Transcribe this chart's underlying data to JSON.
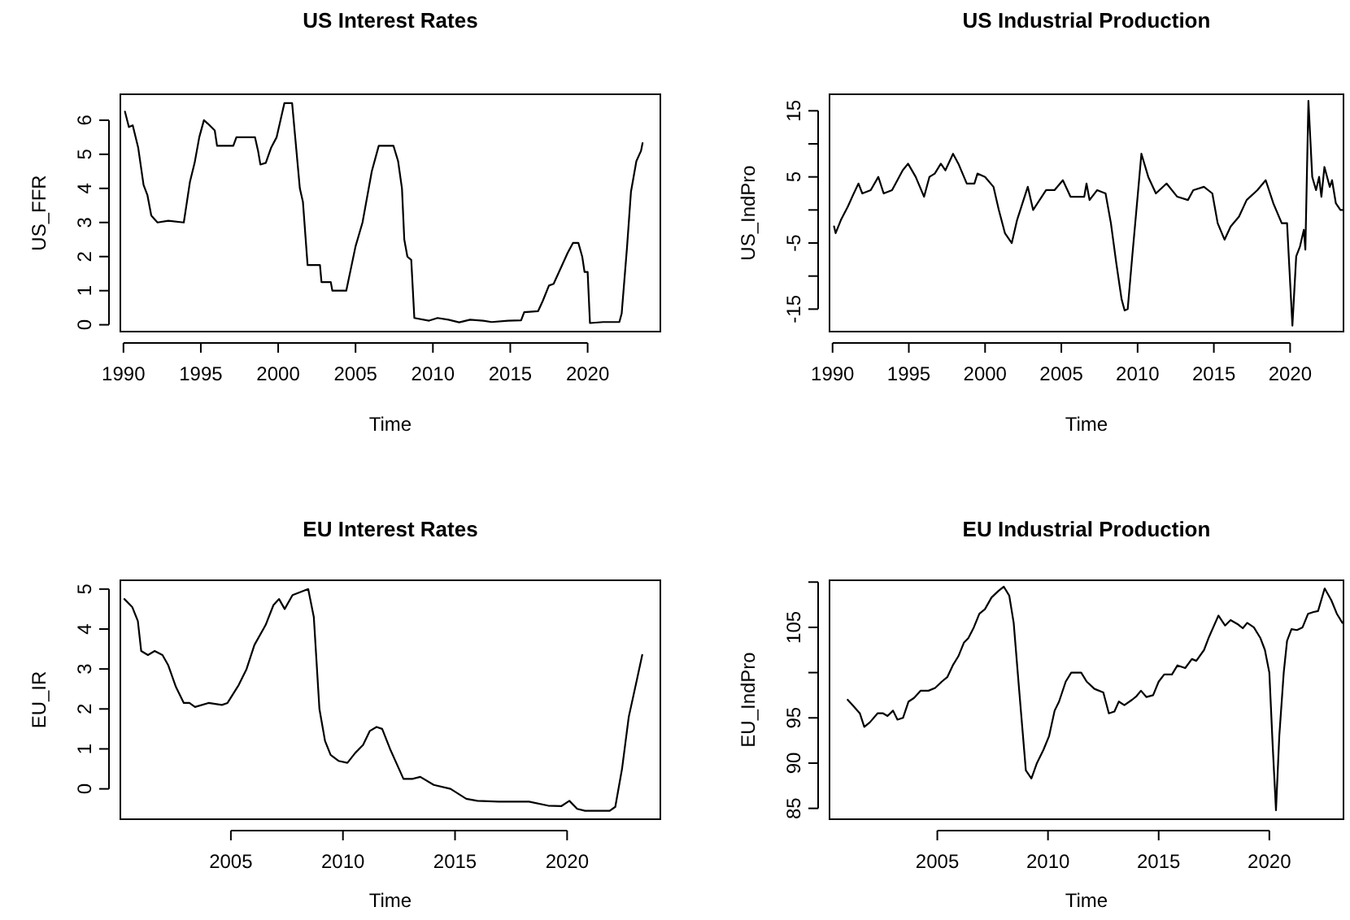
{
  "chart_data": [
    {
      "type": "line",
      "title": "US Interest Rates",
      "xlabel": "Time",
      "ylabel": "US_FFR",
      "xlim": [
        1989.8,
        2024.7
      ],
      "ylim": [
        -0.2,
        6.76
      ],
      "xticks": [
        1990,
        1995,
        2000,
        2005,
        2010,
        2015,
        2020
      ],
      "yticks": [
        0,
        1,
        2,
        3,
        4,
        5,
        6
      ],
      "x": [
        1990.1,
        1990.35,
        1990.6,
        1990.95,
        1991.3,
        1991.55,
        1991.8,
        1992.2,
        1992.9,
        1993.9,
        1994.3,
        1994.6,
        1994.9,
        1995.2,
        1995.45,
        1995.9,
        1996.05,
        1997.1,
        1997.3,
        1998.5,
        1998.7,
        1998.85,
        1999.2,
        1999.55,
        1999.9,
        2000.4,
        2000.9,
        2001.1,
        2001.4,
        2001.6,
        2001.9,
        2002.7,
        2002.8,
        2003.4,
        2003.5,
        2004.4,
        2005.0,
        2005.45,
        2006.05,
        2006.5,
        2007.45,
        2007.75,
        2008.0,
        2008.15,
        2008.35,
        2008.6,
        2008.8,
        2009.75,
        2010.3,
        2011.0,
        2011.7,
        2012.4,
        2013.25,
        2013.8,
        2014.85,
        2015.7,
        2015.9,
        2016.8,
        2017.1,
        2017.5,
        2017.8,
        2018.2,
        2018.7,
        2019.05,
        2019.4,
        2019.65,
        2019.8,
        2020.0,
        2020.15,
        2021.0,
        2022.05,
        2022.2,
        2022.55,
        2022.8,
        2023.15,
        2023.45,
        2023.55
      ],
      "series": [
        {
          "color": "#000000",
          "values": [
            6.25,
            5.8,
            5.85,
            5.2,
            4.1,
            3.8,
            3.2,
            3.0,
            3.05,
            3.0,
            4.2,
            4.75,
            5.5,
            6.0,
            5.9,
            5.7,
            5.25,
            5.25,
            5.5,
            5.5,
            5.1,
            4.7,
            4.75,
            5.2,
            5.5,
            6.5,
            6.5,
            5.5,
            4.0,
            3.6,
            1.75,
            1.75,
            1.25,
            1.25,
            1.0,
            1.0,
            2.3,
            3.0,
            4.5,
            5.25,
            5.25,
            4.8,
            4.0,
            2.5,
            2.0,
            1.9,
            0.2,
            0.12,
            0.2,
            0.15,
            0.07,
            0.15,
            0.12,
            0.08,
            0.12,
            0.13,
            0.37,
            0.4,
            0.7,
            1.15,
            1.2,
            1.6,
            2.1,
            2.4,
            2.4,
            2.0,
            1.55,
            1.55,
            0.05,
            0.08,
            0.08,
            0.33,
            2.3,
            3.9,
            4.8,
            5.1,
            5.33
          ]
        }
      ]
    },
    {
      "type": "line",
      "title": "US Industrial Production",
      "xlabel": "Time",
      "ylabel": "US_IndPro",
      "xlim": [
        1989.8,
        2023.5
      ],
      "ylim": [
        -18.4,
        17.5
      ],
      "xticks": [
        1990,
        1995,
        2000,
        2005,
        2010,
        2015,
        2020
      ],
      "yticks": [
        -15,
        {
          "value": -10,
          "label": null
        },
        -5,
        {
          "value": 0,
          "label": null
        },
        5,
        {
          "value": 10,
          "label": null
        },
        15
      ],
      "x": [
        1990.1,
        1990.2,
        1990.55,
        1991.0,
        1991.35,
        1991.7,
        1991.95,
        1992.5,
        1993.0,
        1993.35,
        1993.9,
        1994.25,
        1994.6,
        1994.95,
        1995.45,
        1996.0,
        1996.35,
        1996.7,
        1997.1,
        1997.4,
        1997.9,
        1998.25,
        1998.8,
        1999.3,
        1999.5,
        2000.0,
        2000.55,
        2000.9,
        2001.3,
        2001.75,
        2002.1,
        2002.45,
        2002.8,
        2003.15,
        2004.0,
        2004.55,
        2005.1,
        2005.6,
        2006.5,
        2006.65,
        2006.85,
        2007.35,
        2007.9,
        2008.25,
        2008.6,
        2008.95,
        2009.15,
        2009.35,
        2009.65,
        2010.0,
        2010.25,
        2010.7,
        2011.2,
        2011.9,
        2012.6,
        2013.3,
        2013.65,
        2014.35,
        2014.9,
        2015.25,
        2015.7,
        2016.1,
        2016.65,
        2017.15,
        2017.85,
        2018.4,
        2018.9,
        2019.45,
        2019.8,
        2019.9,
        2020.15,
        2020.4,
        2020.65,
        2020.9,
        2021.0,
        2021.2,
        2021.45,
        2021.7,
        2021.9,
        2022.05,
        2022.25,
        2022.6,
        2022.75,
        2023.0,
        2023.3,
        2023.45
      ],
      "series": [
        {
          "color": "#000000",
          "values": [
            -2.5,
            -3.5,
            -1.5,
            0.5,
            2.3,
            4.0,
            2.5,
            3.0,
            5.0,
            2.5,
            3.0,
            4.5,
            6.0,
            7.0,
            5.0,
            2.0,
            5.0,
            5.5,
            7.0,
            6.0,
            8.5,
            7.0,
            4.0,
            4.0,
            5.5,
            5.0,
            3.5,
            0.0,
            -3.5,
            -5.0,
            -1.5,
            1.0,
            3.5,
            0.0,
            3.0,
            3.0,
            4.5,
            2.0,
            2.0,
            4.0,
            1.5,
            3.0,
            2.5,
            -2.0,
            -8.0,
            -13.5,
            -15.2,
            -15.0,
            -7.0,
            2.0,
            8.5,
            5.0,
            2.5,
            4.0,
            2.0,
            1.5,
            3.0,
            3.5,
            2.5,
            -2.0,
            -4.5,
            -2.5,
            -1.0,
            1.5,
            3.0,
            4.5,
            1.0,
            -2.0,
            -2.0,
            -6.5,
            -17.5,
            -7.0,
            -5.5,
            -3.0,
            -6.0,
            16.5,
            5.0,
            3.0,
            5.0,
            2.0,
            6.5,
            3.5,
            4.5,
            1.0,
            0.0,
            0.0
          ]
        }
      ]
    },
    {
      "type": "line",
      "title": "EU Interest Rates",
      "xlabel": "Time",
      "ylabel": "EU_IR",
      "xlim": [
        2000.07,
        2024.16
      ],
      "ylim": [
        -0.76,
        5.22
      ],
      "xticks": [
        2005,
        2010,
        2015,
        2020
      ],
      "yticks": [
        0,
        1,
        2,
        3,
        4,
        5
      ],
      "x": [
        2000.25,
        2000.6,
        2000.85,
        2001.0,
        2001.3,
        2001.6,
        2001.95,
        2002.2,
        2002.55,
        2002.9,
        2003.15,
        2003.4,
        2004.0,
        2004.6,
        2004.85,
        2005.35,
        2005.7,
        2006.05,
        2006.55,
        2006.9,
        2007.15,
        2007.4,
        2007.75,
        2008.45,
        2008.7,
        2008.95,
        2009.2,
        2009.45,
        2009.8,
        2010.2,
        2010.55,
        2010.9,
        2011.2,
        2011.5,
        2011.75,
        2012.1,
        2012.7,
        2013.1,
        2013.45,
        2014.05,
        2014.8,
        2015.5,
        2016.0,
        2016.95,
        2018.3,
        2019.15,
        2019.75,
        2020.1,
        2020.45,
        2020.8,
        2021.55,
        2021.9,
        2022.15,
        2022.45,
        2022.75,
        2023.1,
        2023.35
      ],
      "series": [
        {
          "color": "#000000",
          "values": [
            4.75,
            4.55,
            4.2,
            3.45,
            3.35,
            3.45,
            3.35,
            3.1,
            2.55,
            2.15,
            2.15,
            2.05,
            2.15,
            2.1,
            2.15,
            2.6,
            3.0,
            3.6,
            4.1,
            4.6,
            4.75,
            4.5,
            4.85,
            5.0,
            4.3,
            2.0,
            1.2,
            0.85,
            0.7,
            0.65,
            0.9,
            1.1,
            1.45,
            1.55,
            1.5,
            1.0,
            0.25,
            0.25,
            0.3,
            0.1,
            0.0,
            -0.25,
            -0.3,
            -0.32,
            -0.32,
            -0.42,
            -0.43,
            -0.3,
            -0.5,
            -0.55,
            -0.55,
            -0.55,
            -0.45,
            0.5,
            1.8,
            2.7,
            3.35
          ]
        }
      ]
    },
    {
      "type": "line",
      "title": "EU Industrial Production",
      "xlabel": "Time",
      "ylabel": "EU_IndPro",
      "xlim": [
        2000.13,
        2023.35
      ],
      "ylim": [
        83.8,
        110.2
      ],
      "xticks": [
        2005,
        2010,
        2015,
        2020
      ],
      "yticks": [
        85,
        90,
        95,
        {
          "value": 100,
          "label": null
        },
        105,
        {
          "value": 110,
          "label": null
        }
      ],
      "x": [
        2000.95,
        2001.25,
        2001.5,
        2001.7,
        2001.95,
        2002.3,
        2002.55,
        2002.75,
        2003.0,
        2003.2,
        2003.45,
        2003.7,
        2003.95,
        2004.25,
        2004.6,
        2004.9,
        2005.2,
        2005.45,
        2005.7,
        2005.95,
        2006.2,
        2006.4,
        2006.65,
        2006.9,
        2007.15,
        2007.45,
        2007.75,
        2008.0,
        2008.25,
        2008.45,
        2008.7,
        2009.0,
        2009.25,
        2009.5,
        2009.8,
        2010.05,
        2010.3,
        2010.5,
        2010.8,
        2011.05,
        2011.5,
        2011.75,
        2012.1,
        2012.5,
        2012.75,
        2013.0,
        2013.2,
        2013.45,
        2013.8,
        2014.0,
        2014.2,
        2014.45,
        2014.75,
        2015.0,
        2015.25,
        2015.6,
        2015.85,
        2016.2,
        2016.5,
        2016.7,
        2017.05,
        2017.25,
        2017.7,
        2018.0,
        2018.25,
        2018.6,
        2018.8,
        2019.0,
        2019.3,
        2019.6,
        2019.8,
        2020.0,
        2020.15,
        2020.3,
        2020.45,
        2020.65,
        2020.8,
        2021.0,
        2021.25,
        2021.5,
        2021.75,
        2022.0,
        2022.2,
        2022.5,
        2022.8,
        2023.05,
        2023.3
      ],
      "series": [
        {
          "color": "#000000",
          "values": [
            97.0,
            96.2,
            95.5,
            94.0,
            94.5,
            95.5,
            95.5,
            95.2,
            95.8,
            94.8,
            95.0,
            96.8,
            97.2,
            98.0,
            98.0,
            98.3,
            99.0,
            99.5,
            100.8,
            101.8,
            103.3,
            103.8,
            105.0,
            106.5,
            107.0,
            108.3,
            109.0,
            109.5,
            108.5,
            105.5,
            98.0,
            89.2,
            88.3,
            90.0,
            91.5,
            93.0,
            95.8,
            96.8,
            99.0,
            100.0,
            100.0,
            99.0,
            98.2,
            97.8,
            95.5,
            95.7,
            96.8,
            96.4,
            97.0,
            97.4,
            98.0,
            97.3,
            97.5,
            99.0,
            99.8,
            99.8,
            100.8,
            100.5,
            101.5,
            101.3,
            102.5,
            103.8,
            106.3,
            105.2,
            105.8,
            105.3,
            104.9,
            105.5,
            105.0,
            103.8,
            102.5,
            100.0,
            92.0,
            84.8,
            93.0,
            100.0,
            103.5,
            104.8,
            104.7,
            105.0,
            106.5,
            106.7,
            106.8,
            109.3,
            108.0,
            106.5,
            105.5
          ]
        }
      ]
    }
  ]
}
